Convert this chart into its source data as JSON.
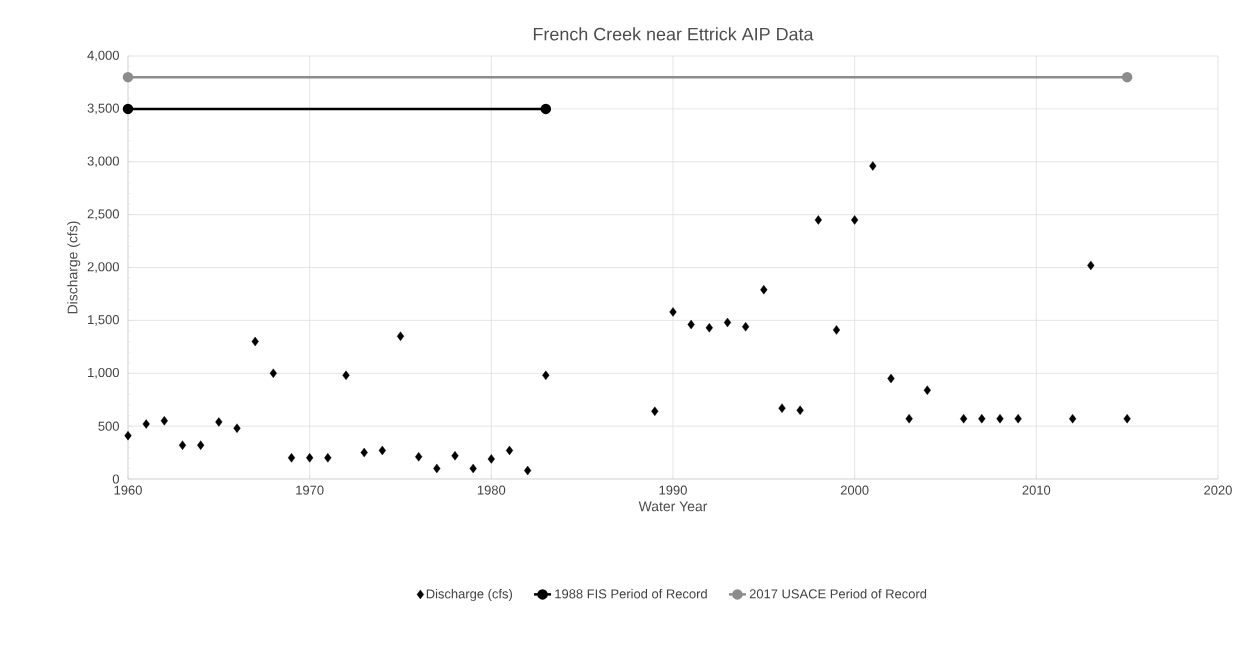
{
  "chart_data": {
    "type": "scatter",
    "title": "French Creek near Ettrick AIP Data",
    "xlabel": "Water Year",
    "ylabel": "Discharge (cfs)",
    "xlim": [
      1960,
      2020
    ],
    "xticks": [
      1960,
      1970,
      1980,
      1990,
      2000,
      2010,
      2020
    ],
    "ylim": [
      0,
      4000
    ],
    "yticks": [
      {
        "value": 0,
        "label": "0"
      },
      {
        "value": 500,
        "label": "500"
      },
      {
        "value": 1000,
        "label": "1,000"
      },
      {
        "value": 1500,
        "label": "1,500"
      },
      {
        "value": 2000,
        "label": "2,000"
      },
      {
        "value": 2500,
        "label": "2,500"
      },
      {
        "value": 3000,
        "label": "3,000"
      },
      {
        "value": 3500,
        "label": "3,500"
      },
      {
        "value": 4000,
        "label": "4,000"
      }
    ],
    "grid": true,
    "legend": "bottom",
    "series": [
      {
        "name": "Discharge (cfs)",
        "color": "#000000",
        "marker": "diamond",
        "x": [
          1960,
          1961,
          1962,
          1963,
          1964,
          1965,
          1966,
          1967,
          1968,
          1969,
          1970,
          1971,
          1972,
          1973,
          1974,
          1975,
          1976,
          1977,
          1978,
          1979,
          1980,
          1981,
          1982,
          1983,
          1989,
          1990,
          1991,
          1992,
          1993,
          1994,
          1995,
          1996,
          1997,
          1998,
          1999,
          2000,
          2001,
          2002,
          2003,
          2004,
          2006,
          2007,
          2008,
          2009,
          2012,
          2013,
          2015
        ],
        "values": [
          410,
          520,
          550,
          320,
          320,
          540,
          480,
          1300,
          1000,
          200,
          200,
          200,
          980,
          250,
          270,
          1350,
          210,
          100,
          220,
          100,
          190,
          270,
          80,
          980,
          640,
          1580,
          1460,
          1430,
          1480,
          1440,
          1790,
          670,
          650,
          2450,
          1410,
          2450,
          2960,
          950,
          570,
          840,
          570,
          570,
          570,
          570,
          570,
          2020,
          570
        ]
      },
      {
        "name": "1988 FIS Period of Record",
        "type": "line",
        "color": "#000000",
        "marker": "circle",
        "line_style": "solid",
        "x": [
          1960,
          1983
        ],
        "values": [
          3500,
          3500
        ]
      },
      {
        "name": "2017 USACE Period of Record",
        "type": "line",
        "color": "#8c8c8c",
        "marker": "circle",
        "line_style": "solid",
        "x": [
          1960,
          2015
        ],
        "values": [
          3800,
          3800
        ]
      }
    ]
  }
}
